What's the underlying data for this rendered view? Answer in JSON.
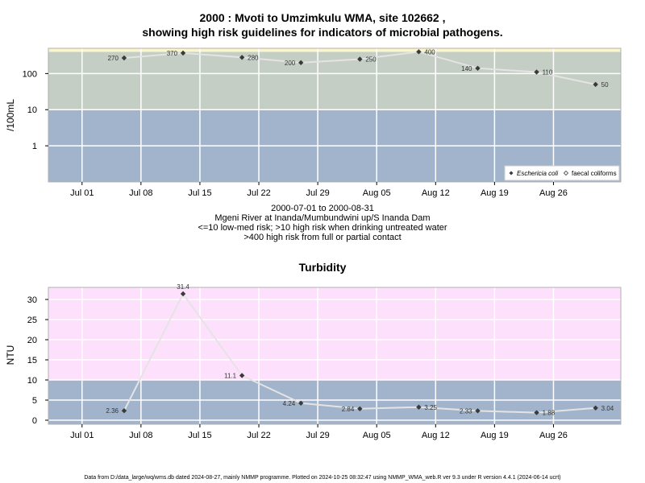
{
  "titles": {
    "main_line1": "2000 : Mvoti to Umzimkulu WMA, site 102662 ,",
    "main_line2": "showing high risk guidelines for indicators of microbial pathogens.",
    "sub_lines": [
      "2000-07-01 to 2000-08-31",
      "Mgeni River at Inanda/Mumbundwini up/S Inanda Dam",
      "<=10 low-med risk; >10 high risk when drinking untreated water",
      ">400 high risk from full or partial contact"
    ],
    "turbidity": "Turbidity"
  },
  "footer": "Data from D:/data_large/wq/wms.db dated 2024-08-27, mainly NMMP programme. Plotted on 2024-10-25 08:32:47 using NMMP_WMA_web.R ver 9.3 under R version 4.4.1 (2024-06-14 ucrt)",
  "colors": {
    "low_band": "#a2b4cc",
    "mid_band": "#c4cec4",
    "high_band": "#fbf5c8",
    "turbid_high": "#fde0fb",
    "line": "#e4e4e4",
    "point": "#3a3a3a",
    "grid": "#ffffff"
  },
  "chart_data": [
    {
      "type": "line",
      "ylabel": "/100mL",
      "yscale": "log10",
      "ylim": [
        0.1,
        500
      ],
      "yticks": [
        1,
        10,
        100
      ],
      "ytick_labels": [
        "1",
        "10",
        "100"
      ],
      "xlim": [
        "2000-06-27",
        "2000-09-03"
      ],
      "xticks": [
        "2000-07-01",
        "2000-07-08",
        "2000-07-15",
        "2000-07-22",
        "2000-07-29",
        "2000-08-05",
        "2000-08-12",
        "2000-08-19",
        "2000-08-26"
      ],
      "xtick_labels": [
        "Jul 01",
        "Jul 08",
        "Jul 15",
        "Jul 22",
        "Jul 29",
        "Aug 05",
        "Aug 12",
        "Aug 19",
        "Aug 26"
      ],
      "bands": [
        {
          "from": 0.1,
          "to": 10,
          "color": "#a2b4cc"
        },
        {
          "from": 10,
          "to": 400,
          "color": "#c4cec4"
        },
        {
          "from": 400,
          "to": 500,
          "color": "#fbf5c8"
        }
      ],
      "legend": {
        "position": "bottom-right",
        "entries": [
          "Eschericia coli",
          "faecal coliforms"
        ]
      },
      "series": [
        {
          "name": "Eschericia coli",
          "x": [
            "2000-07-06",
            "2000-07-13",
            "2000-07-20",
            "2000-07-27",
            "2000-08-03",
            "2000-08-10",
            "2000-08-17",
            "2000-08-24",
            "2000-08-31"
          ],
          "values": [
            270,
            370,
            280,
            200,
            250,
            400,
            140,
            110,
            50
          ],
          "labels": [
            "270",
            "370",
            "280",
            "200",
            "250",
            "400",
            "140",
            "110",
            "50"
          ],
          "label_side": [
            "left",
            "left",
            "right",
            "left",
            "right",
            "right",
            "left",
            "right",
            "right"
          ]
        }
      ]
    },
    {
      "type": "line",
      "title": "Turbidity",
      "ylabel": "NTU",
      "ylim": [
        -1,
        33
      ],
      "yticks": [
        0,
        5,
        10,
        15,
        20,
        25,
        30
      ],
      "ytick_labels": [
        "0",
        "5",
        "10",
        "15",
        "20",
        "25",
        "30"
      ],
      "xlim": [
        "2000-06-27",
        "2000-09-03"
      ],
      "xticks": [
        "2000-07-01",
        "2000-07-08",
        "2000-07-15",
        "2000-07-22",
        "2000-07-29",
        "2000-08-05",
        "2000-08-12",
        "2000-08-19",
        "2000-08-26"
      ],
      "xtick_labels": [
        "Jul 01",
        "Jul 08",
        "Jul 15",
        "Jul 22",
        "Jul 29",
        "Aug 05",
        "Aug 12",
        "Aug 19",
        "Aug 26"
      ],
      "bands": [
        {
          "from": -1,
          "to": 10,
          "color": "#a2b4cc"
        },
        {
          "from": 10,
          "to": 33,
          "color": "#fde0fb"
        }
      ],
      "series": [
        {
          "name": "",
          "x": [
            "2000-07-06",
            "2000-07-13",
            "2000-07-20",
            "2000-07-27",
            "2000-08-03",
            "2000-08-10",
            "2000-08-17",
            "2000-08-24",
            "2000-08-31"
          ],
          "values": [
            2.36,
            31.4,
            11.1,
            4.24,
            2.84,
            3.25,
            2.33,
            1.88,
            3.04
          ],
          "labels": [
            "2.36",
            "31.4",
            "11.1",
            "4.24",
            "2.84",
            "3.25",
            "2.33",
            "1.88",
            "3.04"
          ],
          "label_side": [
            "left",
            "top",
            "left",
            "left",
            "left",
            "right",
            "left",
            "right",
            "right"
          ]
        }
      ]
    }
  ]
}
